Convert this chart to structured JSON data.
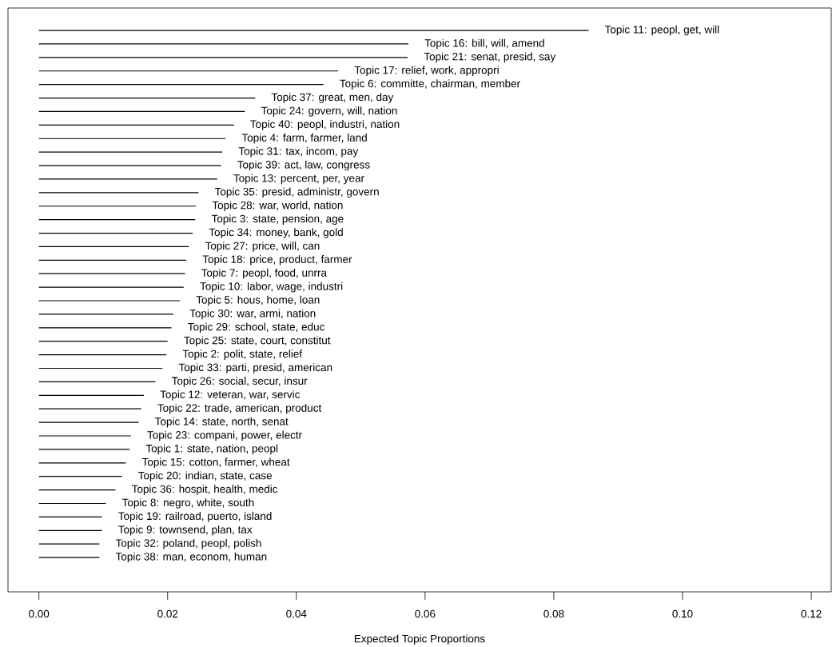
{
  "chart_data": {
    "type": "bar",
    "orientation": "horizontal",
    "xlabel": "Expected Topic Proportions",
    "color": "#000000",
    "tick_labels": "x",
    "categories": [
      "Topic 11: peopl, get, will",
      "Topic 16: bill, will, amend",
      "Topic 21: senat, presid, say",
      "Topic 17: relief, work, appropri",
      "Topic 6: committe, chairman, member",
      "Topic 37: great, men, day",
      "Topic 24: govern, will, nation",
      "Topic 40: peopl, industri, nation",
      "Topic 4: farm, farmer, land",
      "Topic 31: tax, incom, pay",
      "Topic 39: act, law, congress",
      "Topic 13: percent, per, year",
      "Topic 35: presid, administr, govern",
      "Topic 28: war, world, nation",
      "Topic 3: state, pension, age",
      "Topic 34: money, bank, gold",
      "Topic 27: price, will, can",
      "Topic 18: price, product, farmer",
      "Topic 7: peopl, food, unrra",
      "Topic 10: labor, wage, industri",
      "Topic 5: hous, home, loan",
      "Topic 30: war, armi, nation",
      "Topic 29: school, state, educ",
      "Topic 25: state, court, constitut",
      "Topic 2: polit, state, relief",
      "Topic 33: parti, presid, american",
      "Topic 26: social, secur, insur",
      "Topic 12: veteran, war, servic",
      "Topic 22: trade, american, product",
      "Topic 14: state, north, senat",
      "Topic 23: compani, power, electr",
      "Topic 1: state, nation, peopl",
      "Topic 15: cotton, farmer, wheat",
      "Topic 20: indian, state, case",
      "Topic 36: hospit, health, medic",
      "Topic 8: negro, white, south",
      "Topic 19: railroad, puerto, island",
      "Topic 9: townsend, plan, tax",
      "Topic 32: poland, peopl, polish",
      "Topic 38: man, econom, human"
    ],
    "values": [
      0.0854,
      0.0574,
      0.0573,
      0.0465,
      0.0442,
      0.0336,
      0.032,
      0.0303,
      0.029,
      0.0285,
      0.0283,
      0.0277,
      0.0248,
      0.0244,
      0.0243,
      0.0239,
      0.0233,
      0.0229,
      0.0227,
      0.0225,
      0.0219,
      0.0209,
      0.0206,
      0.02,
      0.0198,
      0.0192,
      0.0181,
      0.0163,
      0.0159,
      0.0155,
      0.0143,
      0.0141,
      0.0135,
      0.0129,
      0.0119,
      0.0104,
      0.0098,
      0.0098,
      0.0094,
      0.0094
    ],
    "xlim": [
      -0.0048,
      0.1231
    ],
    "xticks": [
      {
        "value": 0,
        "label": "0.00"
      },
      {
        "value": 0.02,
        "label": "0.02"
      },
      {
        "value": 0.04,
        "label": "0.04"
      },
      {
        "value": 0.06,
        "label": "0.06"
      },
      {
        "value": 0.08,
        "label": "0.08"
      },
      {
        "value": 0.1,
        "label": "0.10"
      },
      {
        "value": 0.12,
        "label": "0.12"
      }
    ]
  }
}
